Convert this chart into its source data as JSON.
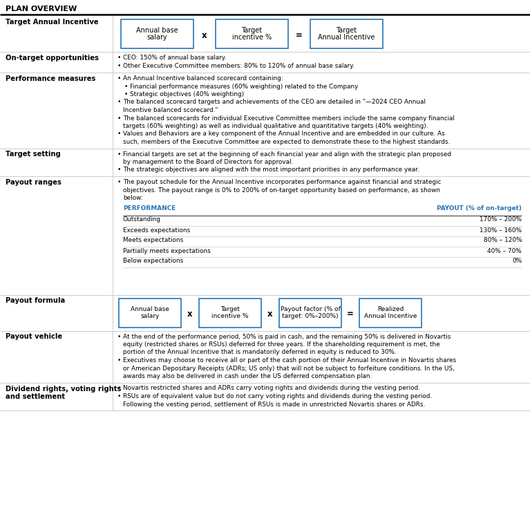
{
  "title": "PLAN OVERVIEW",
  "bg_color": "#ffffff",
  "border_color": "#2775b6",
  "header_blue": "#2775b6",
  "sections": [
    {
      "label": "Target Annual Incentive",
      "type": "formula3",
      "formula_boxes": [
        "Annual base\nsalary",
        "Target\nincentive %",
        "Target\nAnnual Incentive"
      ],
      "formula_ops": [
        "x",
        "="
      ]
    },
    {
      "label": "On-target opportunities",
      "type": "bullets",
      "items": [
        {
          "indent": 0,
          "text": "CEO: 150% of annual base salary."
        },
        {
          "indent": 0,
          "text": "Other Executive Committee members: 80% to 120% of annual base salary."
        }
      ]
    },
    {
      "label": "Performance measures",
      "type": "bullets",
      "items": [
        {
          "indent": 0,
          "text": "An Annual Incentive balanced scorecard containing:"
        },
        {
          "indent": 1,
          "text": "Financial performance measures (60% weighting) related to the Company"
        },
        {
          "indent": 1,
          "text": "Strategic objectives (40% weighting)"
        },
        {
          "indent": 0,
          "text": "The balanced scorecard targets and achievements of the CEO are detailed in \"—2024 CEO Annual"
        },
        {
          "indent": 2,
          "text": "Incentive balanced scorecard.\""
        },
        {
          "indent": 0,
          "text": "The balanced scorecards for individual Executive Committee members include the same company financial"
        },
        {
          "indent": 2,
          "text": "targets (60% weighting) as well as individual qualitative and quantitative targets (40% weighting)."
        },
        {
          "indent": 0,
          "text": "Values and Behaviors are a key component of the Annual Incentive and are embedded in our culture. As"
        },
        {
          "indent": 2,
          "text": "such, members of the Executive Committee are expected to demonstrate these to the highest standards."
        }
      ]
    },
    {
      "label": "Target setting",
      "type": "bullets",
      "items": [
        {
          "indent": 0,
          "text": "Financial targets are set at the beginning of each financial year and align with the strategic plan proposed"
        },
        {
          "indent": 2,
          "text": "by management to the Board of Directors for approval."
        },
        {
          "indent": 0,
          "text": "The strategic objectives are aligned with the most important priorities in any performance year."
        }
      ]
    },
    {
      "label": "Payout ranges",
      "type": "mixed",
      "items": [
        {
          "indent": 0,
          "text": "The payout schedule for the Annual Incentive incorporates performance against financial and strategic"
        },
        {
          "indent": 2,
          "text": "objectives. The payout range is 0% to 200% of on-target opportunity based on performance, as shown"
        },
        {
          "indent": 2,
          "text": "below:"
        }
      ],
      "table_headers": [
        "PERFORMANCE",
        "PAYOUT (% of on-target)"
      ],
      "table_rows": [
        [
          "Outstanding",
          "170% – 200%"
        ],
        [
          "Exceeds expectations",
          "130% – 160%"
        ],
        [
          "Meets expectations",
          "80% – 120%"
        ],
        [
          "Partially meets expectations",
          "40% – 70%"
        ],
        [
          "Below expectations",
          "0%"
        ]
      ]
    },
    {
      "label": "Payout formula",
      "type": "formula4",
      "formula_boxes": [
        "Annual base\nsalary",
        "Target\nincentive %",
        "Payout factor (% of\ntarget: 0%–200%)",
        "Realized\nAnnual Incentive"
      ],
      "formula_ops": [
        "x",
        "x",
        "="
      ]
    },
    {
      "label": "Payout vehicle",
      "type": "bullets",
      "items": [
        {
          "indent": 0,
          "text": "At the end of the performance period, 50% is paid in cash, and the remaining 50% is delivered in Novartis"
        },
        {
          "indent": 2,
          "text": "equity (restricted shares or RSUs) deferred for three years. If the shareholding requirement is met, the"
        },
        {
          "indent": 2,
          "text": "portion of the Annual Incentive that is mandatorily deferred in equity is reduced to 30%."
        },
        {
          "indent": 0,
          "text": "Executives may choose to receive all or part of the cash portion of their Annual Incentive in Novartis shares"
        },
        {
          "indent": 2,
          "text": "or American Depositary Receipts (ADRs; US only) that will not be subject to forfeiture conditions. In the US,"
        },
        {
          "indent": 2,
          "text": "awards may also be delivered in cash under the US deferred compensation plan."
        }
      ]
    },
    {
      "label": "Dividend rights, voting rights\nand settlement",
      "type": "bullets",
      "items": [
        {
          "indent": 0,
          "text": "Novartis restricted shares and ADRs carry voting rights and dividends during the vesting period."
        },
        {
          "indent": 0,
          "text": "RSUs are of equivalent value but do not carry voting rights and dividends during the vesting period."
        },
        {
          "indent": 2,
          "text": "Following the vesting period, settlement of RSUs is made in unrestricted Novartis shares or ADRs."
        }
      ]
    }
  ]
}
